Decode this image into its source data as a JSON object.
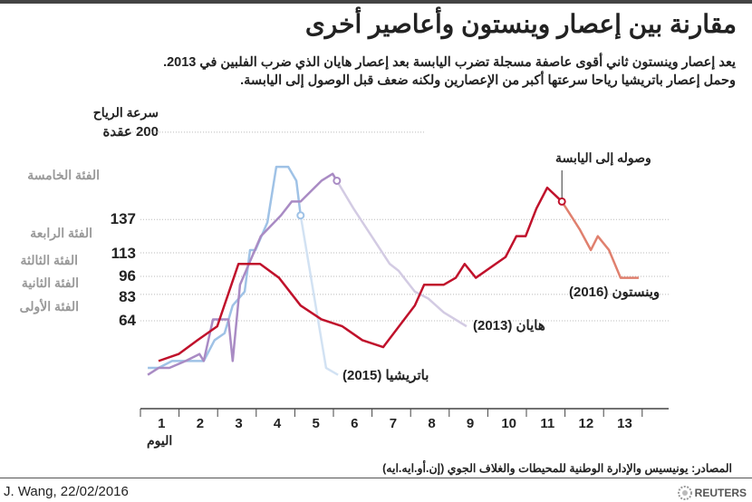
{
  "title": "مقارنة بين إعصار وينستون وأعاصير أخرى",
  "subtitle_lines": [
    "يعد إعصار وينستون ثاني أقوى عاصفة مسجلة تضرب اليابسة بعد إعصار هايان الذي ضرب الفلبين في 2013.",
    "وحمل  إعصار باتريشيا رياحا سرعتها أكبر من الإعصارين ولكنه ضعف قبل الوصول إلى اليابسة."
  ],
  "source": "المصادر: يونيسيس والإدارة الوطنية للمحيطات والغلاف الجوي (إن.أو.ايه.ايه)",
  "credit": "J. Wang, 22/02/2016",
  "logo_text": "REUTERS",
  "chart_data": {
    "type": "line",
    "ylabel": "سرعة الرياح",
    "ytop_label": "200 عقدة",
    "xlabel": "اليوم",
    "x_ticks": [
      "1",
      "2",
      "3",
      "4",
      "5",
      "6",
      "7",
      "8",
      "9",
      "10",
      "11",
      "12",
      "13"
    ],
    "y_ticks": [
      {
        "value": 137,
        "label": "137"
      },
      {
        "value": 113,
        "label": "113"
      },
      {
        "value": 96,
        "label": "96"
      },
      {
        "value": 83,
        "label": "83"
      },
      {
        "value": 64,
        "label": "64"
      }
    ],
    "categories": [
      {
        "label": "الفئة الخامسة",
        "value": 175
      },
      {
        "label": "الفئة الرابعة",
        "value": 125
      },
      {
        "label": "الفئة الثالثة",
        "value": 104
      },
      {
        "label": "الفئة الثانية",
        "value": 89
      },
      {
        "label": "الفئة الأولى",
        "value": 73
      }
    ],
    "ylim": [
      25,
      200
    ],
    "xlim": [
      0,
      13.7
    ],
    "grid": true,
    "annotation": "وصوله إلى اليابسة",
    "series": [
      {
        "name": "وينستون (2016)",
        "color": "#c0112b",
        "after_color": "#e0806e",
        "landfall_index": 23,
        "x": [
          0.47,
          0.99,
          1.48,
          1.99,
          2.54,
          3.1,
          3.59,
          4.15,
          4.69,
          5.23,
          5.75,
          6.29,
          7.11,
          7.35,
          7.86,
          8.17,
          8.4,
          8.69,
          9.46,
          9.74,
          9.98,
          10.26,
          10.54,
          10.92,
          11.15,
          11.38,
          11.67,
          11.85,
          12.14,
          12.44,
          12.91
        ],
        "y": [
          35,
          40,
          50,
          60,
          105,
          105,
          95,
          75,
          65,
          60,
          50,
          45,
          75,
          90,
          90,
          95,
          105,
          95,
          110,
          125,
          125,
          145,
          160,
          150,
          140,
          130,
          115,
          125,
          115,
          95,
          95
        ]
      },
      {
        "name": "هايان (2013)",
        "color": "#a98bc4",
        "after_color": "#d3cbe3",
        "landfall_index": 16,
        "x": [
          0.19,
          0.47,
          0.75,
          1.17,
          1.53,
          1.64,
          1.88,
          2.28,
          2.39,
          2.58,
          3.12,
          3.64,
          3.92,
          4.15,
          4.69,
          4.98,
          5.09,
          5.52,
          5.99,
          6.46,
          6.69,
          7.11,
          7.46,
          7.86,
          8.45
        ],
        "y": [
          25,
          30,
          30,
          35,
          40,
          35,
          65,
          65,
          35,
          90,
          125,
          140,
          150,
          150,
          165,
          170,
          165,
          145,
          125,
          105,
          100,
          85,
          80,
          70,
          60
        ]
      },
      {
        "name": "باتريشيا (2015)",
        "color": "#9fc2e6",
        "after_color": "#d2e2f3",
        "landfall_index": 14,
        "x": [
          0.19,
          0.47,
          0.82,
          1.64,
          1.92,
          2.18,
          2.39,
          2.7,
          2.84,
          2.98,
          3.29,
          3.52,
          3.83,
          4.04,
          4.15,
          4.81,
          5.12
        ],
        "y": [
          30,
          30,
          35,
          35,
          50,
          55,
          75,
          85,
          115,
          115,
          135,
          175,
          175,
          165,
          140,
          30,
          25
        ]
      }
    ]
  }
}
